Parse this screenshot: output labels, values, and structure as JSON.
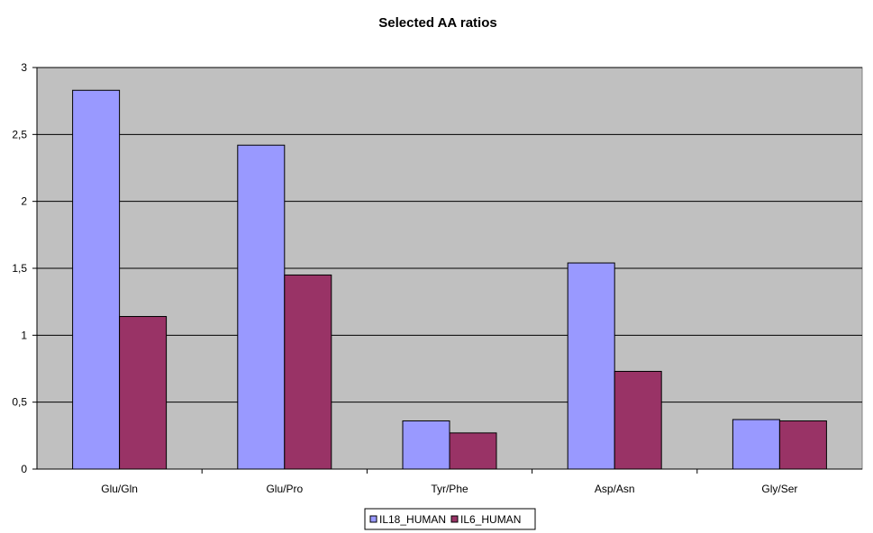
{
  "chart_data": {
    "type": "bar",
    "title": "Selected AA ratios",
    "xlabel": "",
    "ylabel": "",
    "categories": [
      "Glu/Gln",
      "Glu/Pro",
      "Tyr/Phe",
      "Asp/Asn",
      "Gly/Ser"
    ],
    "series": [
      {
        "name": "IL18_HUMAN",
        "values": [
          2.83,
          2.42,
          0.36,
          1.54,
          0.37
        ],
        "color": "#9999ff"
      },
      {
        "name": "IL6_HUMAN",
        "values": [
          1.14,
          1.45,
          0.27,
          0.73,
          0.36
        ],
        "color": "#993366"
      }
    ],
    "ylim": [
      0,
      3
    ],
    "yticks": [
      0,
      0.5,
      1,
      1.5,
      2,
      2.5,
      3
    ],
    "ytick_labels": [
      "0",
      "0,5",
      "1",
      "1,5",
      "2",
      "2,5",
      "3"
    ],
    "plot_background": "#c0c0c0",
    "grid": true,
    "legend_position": "bottom"
  }
}
